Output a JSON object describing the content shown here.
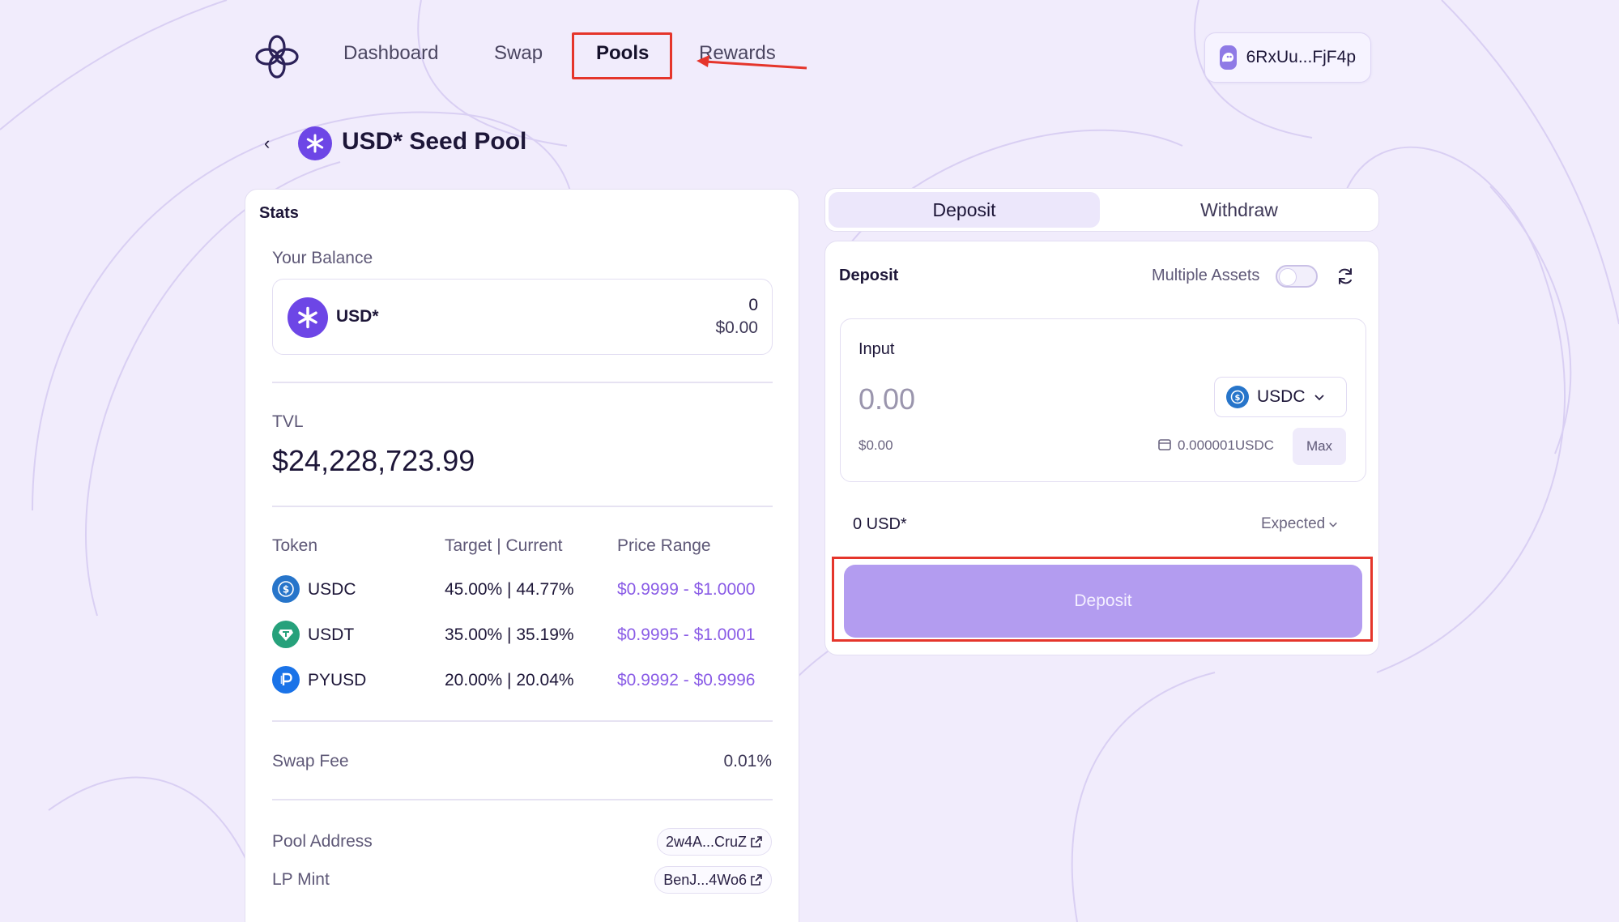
{
  "nav": {
    "items": [
      "Dashboard",
      "Swap",
      "Pools",
      "Rewards"
    ],
    "active": "Pools",
    "wallet": "6RxUu...FjF4p"
  },
  "pool": {
    "title": "USD* Seed Pool",
    "back_icon": "‹"
  },
  "stats": {
    "title": "Stats",
    "balance_label": "Your Balance",
    "balance_token": "USD*",
    "balance_amount": "0",
    "balance_usd": "$0.00",
    "tvl_label": "TVL",
    "tvl_value": "$24,228,723.99",
    "table": {
      "headers": [
        "Token",
        "Target | Current",
        "Price Range"
      ],
      "rows": [
        {
          "token": "USDC",
          "target_current": "45.00% | 44.77%",
          "range": "$0.9999 - $1.0000",
          "color": "#2775ca"
        },
        {
          "token": "USDT",
          "target_current": "35.00% | 35.19%",
          "range": "$0.9995 - $1.0001",
          "color": "#26a17b"
        },
        {
          "token": "PYUSD",
          "target_current": "20.00% | 20.04%",
          "range": "$0.9992 - $0.9996",
          "color": "#1a73e8"
        }
      ]
    },
    "swap_fee_label": "Swap Fee",
    "swap_fee_value": "0.01%",
    "pool_address_label": "Pool Address",
    "pool_address_value": "2w4A...CruZ",
    "lp_mint_label": "LP Mint",
    "lp_mint_value": "BenJ...4Wo6"
  },
  "panel": {
    "tabs": [
      "Deposit",
      "Withdraw"
    ],
    "active_tab": "Deposit",
    "title": "Deposit",
    "multiple_assets_label": "Multiple Assets",
    "multiple_assets_on": false,
    "input_label": "Input",
    "input_placeholder": "0.00",
    "input_usd": "$0.00",
    "selected_token": "USDC",
    "wallet_balance": "0.000001USDC",
    "max_label": "Max",
    "output_amount": "0 USD*",
    "expected_label": "Expected",
    "deposit_button": "Deposit"
  },
  "colors": {
    "accent": "#6d46e6",
    "button": "#b39cf0",
    "annotation": "#e5352b",
    "background": "#f1ecfc"
  }
}
